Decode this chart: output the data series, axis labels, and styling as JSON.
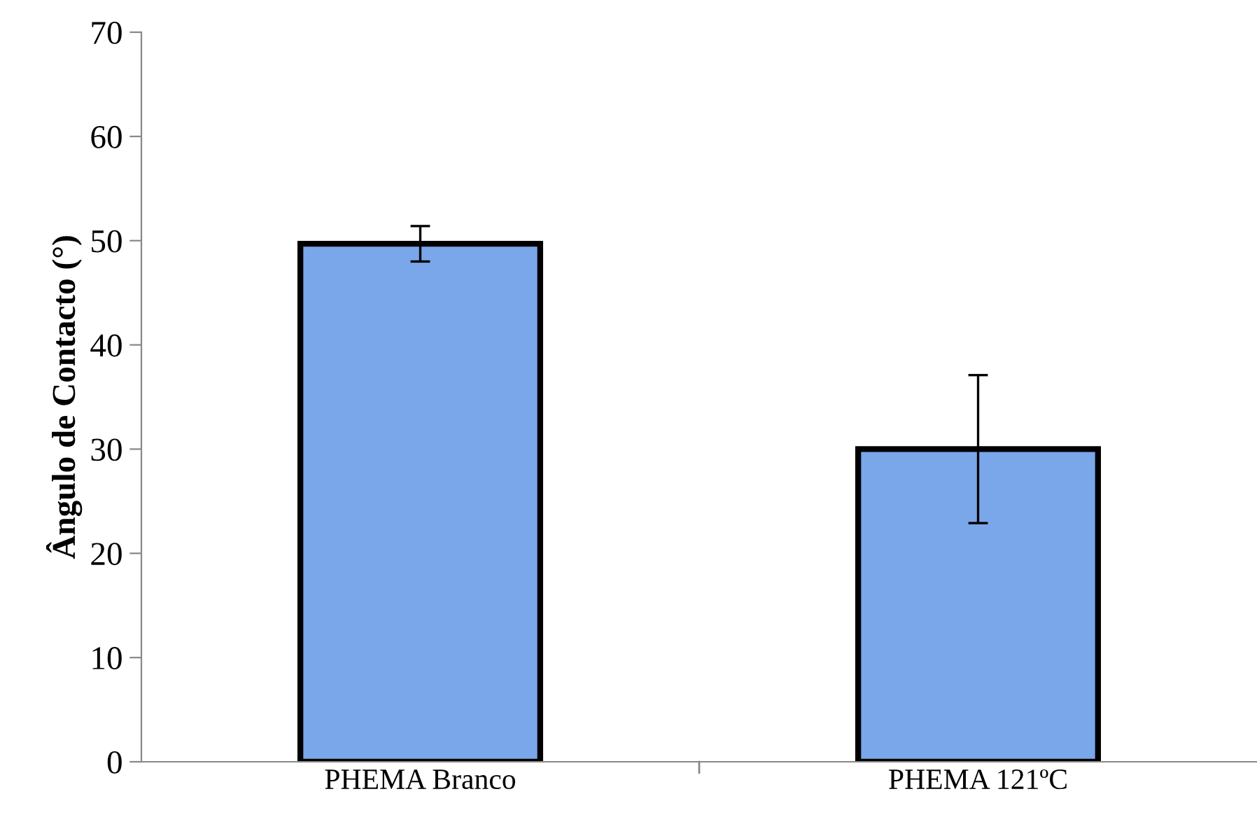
{
  "chart_data": {
    "type": "bar",
    "ylabel": "Ângulo de Contacto (°)",
    "categories": [
      "PHEMA Branco",
      "PHEMA 121ºC"
    ],
    "values": [
      49.7,
      30.0
    ],
    "errors": [
      1.7,
      7.1
    ],
    "color": "#7aa6ea",
    "ylim": [
      0,
      70
    ],
    "yticks": [
      0,
      10,
      20,
      30,
      40,
      50,
      60,
      70
    ],
    "grid": false
  }
}
